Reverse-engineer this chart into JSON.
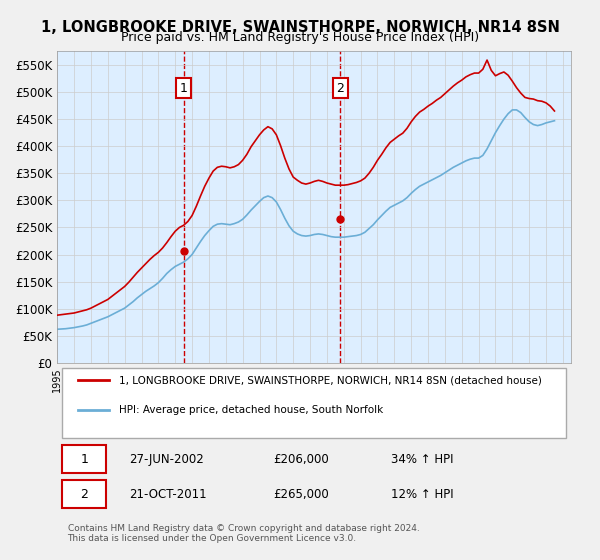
{
  "title": "1, LONGBROOKE DRIVE, SWAINSTHORPE, NORWICH, NR14 8SN",
  "subtitle": "Price paid vs. HM Land Registry's House Price Index (HPI)",
  "legend_line1": "1, LONGBROOKE DRIVE, SWAINSTHORPE, NORWICH, NR14 8SN (detached house)",
  "legend_line2": "HPI: Average price, detached house, South Norfolk",
  "footnote": "Contains HM Land Registry data © Crown copyright and database right 2024.\nThis data is licensed under the Open Government Licence v3.0.",
  "transaction1_label": "1",
  "transaction1_date": "27-JUN-2002",
  "transaction1_price": "£206,000",
  "transaction1_hpi": "34% ↑ HPI",
  "transaction2_label": "2",
  "transaction2_date": "21-OCT-2011",
  "transaction2_price": "£265,000",
  "transaction2_hpi": "12% ↑ HPI",
  "xmin": 1995.0,
  "xmax": 2025.5,
  "ymin": 0,
  "ymax": 575000,
  "yticks": [
    0,
    50000,
    100000,
    150000,
    200000,
    250000,
    300000,
    350000,
    400000,
    450000,
    500000,
    550000
  ],
  "ytick_labels": [
    "£0",
    "£50K",
    "£100K",
    "£150K",
    "£200K",
    "£250K",
    "£300K",
    "£350K",
    "£400K",
    "£450K",
    "£500K",
    "£550K"
  ],
  "hpi_color": "#6baed6",
  "price_color": "#cc0000",
  "background_color": "#ddeeff",
  "plot_bg_color": "#ffffff",
  "vline_color": "#cc0000",
  "marker1_x": 2002.5,
  "marker1_y": 206000,
  "marker2_x": 2011.8,
  "marker2_y": 265000,
  "hpi_data_x": [
    1995.0,
    1995.25,
    1995.5,
    1995.75,
    1996.0,
    1996.25,
    1996.5,
    1996.75,
    1997.0,
    1997.25,
    1997.5,
    1997.75,
    1998.0,
    1998.25,
    1998.5,
    1998.75,
    1999.0,
    1999.25,
    1999.5,
    1999.75,
    2000.0,
    2000.25,
    2000.5,
    2000.75,
    2001.0,
    2001.25,
    2001.5,
    2001.75,
    2002.0,
    2002.25,
    2002.5,
    2002.75,
    2003.0,
    2003.25,
    2003.5,
    2003.75,
    2004.0,
    2004.25,
    2004.5,
    2004.75,
    2005.0,
    2005.25,
    2005.5,
    2005.75,
    2006.0,
    2006.25,
    2006.5,
    2006.75,
    2007.0,
    2007.25,
    2007.5,
    2007.75,
    2008.0,
    2008.25,
    2008.5,
    2008.75,
    2009.0,
    2009.25,
    2009.5,
    2009.75,
    2010.0,
    2010.25,
    2010.5,
    2010.75,
    2011.0,
    2011.25,
    2011.5,
    2011.75,
    2012.0,
    2012.25,
    2012.5,
    2012.75,
    2013.0,
    2013.25,
    2013.5,
    2013.75,
    2014.0,
    2014.25,
    2014.5,
    2014.75,
    2015.0,
    2015.25,
    2015.5,
    2015.75,
    2016.0,
    2016.25,
    2016.5,
    2016.75,
    2017.0,
    2017.25,
    2017.5,
    2017.75,
    2018.0,
    2018.25,
    2018.5,
    2018.75,
    2019.0,
    2019.25,
    2019.5,
    2019.75,
    2020.0,
    2020.25,
    2020.5,
    2020.75,
    2021.0,
    2021.25,
    2021.5,
    2021.75,
    2022.0,
    2022.25,
    2022.5,
    2022.75,
    2023.0,
    2023.25,
    2023.5,
    2023.75,
    2024.0,
    2024.25,
    2024.5
  ],
  "hpi_data_y": [
    62000,
    62500,
    63000,
    64000,
    65000,
    66500,
    68000,
    70000,
    73000,
    76000,
    79000,
    82000,
    85000,
    89000,
    93000,
    97000,
    101000,
    107000,
    113000,
    120000,
    126000,
    132000,
    137000,
    142000,
    148000,
    156000,
    165000,
    172000,
    178000,
    182000,
    186000,
    192000,
    200000,
    212000,
    224000,
    235000,
    244000,
    252000,
    256000,
    257000,
    256000,
    255000,
    257000,
    260000,
    265000,
    273000,
    282000,
    290000,
    298000,
    305000,
    308000,
    305000,
    297000,
    283000,
    267000,
    253000,
    243000,
    238000,
    235000,
    234000,
    235000,
    237000,
    238000,
    237000,
    235000,
    233000,
    232000,
    232000,
    232000,
    233000,
    234000,
    235000,
    237000,
    241000,
    248000,
    255000,
    264000,
    272000,
    280000,
    287000,
    291000,
    295000,
    299000,
    305000,
    313000,
    320000,
    326000,
    330000,
    334000,
    338000,
    342000,
    346000,
    351000,
    356000,
    361000,
    365000,
    369000,
    373000,
    376000,
    378000,
    378000,
    383000,
    395000,
    410000,
    425000,
    438000,
    450000,
    460000,
    467000,
    467000,
    462000,
    453000,
    445000,
    440000,
    438000,
    440000,
    443000,
    445000,
    447000
  ],
  "price_data_x": [
    1995.0,
    1995.25,
    1995.5,
    1995.75,
    1996.0,
    1996.25,
    1996.5,
    1996.75,
    1997.0,
    1997.25,
    1997.5,
    1997.75,
    1998.0,
    1998.25,
    1998.5,
    1998.75,
    1999.0,
    1999.25,
    1999.5,
    1999.75,
    2000.0,
    2000.25,
    2000.5,
    2000.75,
    2001.0,
    2001.25,
    2001.5,
    2001.75,
    2002.0,
    2002.25,
    2002.5,
    2002.75,
    2003.0,
    2003.25,
    2003.5,
    2003.75,
    2004.0,
    2004.25,
    2004.5,
    2004.75,
    2005.0,
    2005.25,
    2005.5,
    2005.75,
    2006.0,
    2006.25,
    2006.5,
    2006.75,
    2007.0,
    2007.25,
    2007.5,
    2007.75,
    2008.0,
    2008.25,
    2008.5,
    2008.75,
    2009.0,
    2009.25,
    2009.5,
    2009.75,
    2010.0,
    2010.25,
    2010.5,
    2010.75,
    2011.0,
    2011.25,
    2011.5,
    2011.75,
    2012.0,
    2012.25,
    2012.5,
    2012.75,
    2013.0,
    2013.25,
    2013.5,
    2013.75,
    2014.0,
    2014.25,
    2014.5,
    2014.75,
    2015.0,
    2015.25,
    2015.5,
    2015.75,
    2016.0,
    2016.25,
    2016.5,
    2016.75,
    2017.0,
    2017.25,
    2017.5,
    2017.75,
    2018.0,
    2018.25,
    2018.5,
    2018.75,
    2019.0,
    2019.25,
    2019.5,
    2019.75,
    2020.0,
    2020.25,
    2020.5,
    2020.75,
    2021.0,
    2021.25,
    2021.5,
    2021.75,
    2022.0,
    2022.25,
    2022.5,
    2022.75,
    2023.0,
    2023.25,
    2023.5,
    2023.75,
    2024.0,
    2024.25,
    2024.5
  ],
  "price_data_y": [
    88000,
    89000,
    90000,
    91000,
    92000,
    94000,
    96000,
    98000,
    101000,
    105000,
    109000,
    113000,
    117000,
    123000,
    129000,
    135000,
    141000,
    149000,
    158000,
    167000,
    175000,
    183000,
    191000,
    198000,
    204000,
    212000,
    222000,
    233000,
    243000,
    250000,
    254000,
    261000,
    272000,
    289000,
    308000,
    326000,
    341000,
    354000,
    361000,
    363000,
    362000,
    360000,
    362000,
    366000,
    374000,
    385000,
    399000,
    410000,
    421000,
    430000,
    436000,
    432000,
    421000,
    401000,
    378000,
    358000,
    343000,
    337000,
    332000,
    330000,
    332000,
    335000,
    337000,
    335000,
    332000,
    330000,
    328000,
    328000,
    328000,
    329000,
    331000,
    333000,
    336000,
    341000,
    350000,
    361000,
    374000,
    385000,
    397000,
    407000,
    413000,
    419000,
    424000,
    433000,
    445000,
    455000,
    463000,
    468000,
    474000,
    479000,
    485000,
    490000,
    497000,
    504000,
    511000,
    517000,
    522000,
    528000,
    532000,
    535000,
    535000,
    542000,
    559000,
    540000,
    530000,
    534000,
    537000,
    531000,
    520000,
    508000,
    498000,
    490000,
    488000,
    487000,
    484000,
    483000,
    480000,
    474000,
    465000
  ]
}
